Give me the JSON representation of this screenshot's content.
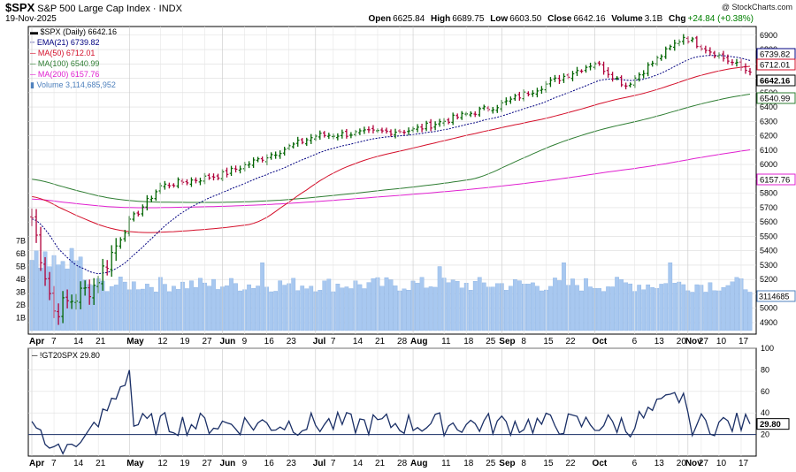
{
  "header": {
    "symbol": "$SPX",
    "description": "S&P 500 Large Cap Index · INDX",
    "date": "19-Nov-2025",
    "watermark": "@ StockCharts.com",
    "open_label": "Open",
    "open": "6625.84",
    "high_label": "High",
    "high": "6689.75",
    "low_label": "Low",
    "low": "6603.50",
    "close_label": "Close",
    "close": "6642.16",
    "volume_label": "Volume",
    "volume": "3.1B",
    "chg_label": "Chg",
    "chg": "+24.84 (+0.38%)",
    "chg_color": "#008000"
  },
  "legend": {
    "price": "$SPX (Daily) 6642.16",
    "ema21": "EMA(21) 6739.82",
    "ma50": "MA(50) 6712.01",
    "ma100": "MA(100) 6540.99",
    "ma200": "MA(200) 6157.76",
    "volume": "Volume 3,114,685,952"
  },
  "colors": {
    "up": "#006400",
    "down": "#b0003a",
    "ema": "#000080",
    "ma50": "#d40f2a",
    "ma100": "#2e7d32",
    "ma200": "#e020d0",
    "volume": "#a8c8f0",
    "indicator": "#1a2f66"
  },
  "price_axis_badges": {
    "ema21": "6739.82",
    "ma50": "6712.01",
    "last": "6642.16",
    "ma100": "6540.99",
    "ma200": "6157.76",
    "volume": "3114685"
  },
  "indicator": {
    "label": "!GT20SPX 29.80",
    "last": "29.80"
  },
  "chart_data": [
    {
      "type": "ohlc",
      "title": "$SPX S&P 500 Large Cap Index",
      "price_ticks": [
        4900,
        5000,
        5100,
        5200,
        5300,
        5400,
        5500,
        5600,
        5700,
        5800,
        5900,
        6000,
        6100,
        6200,
        6300,
        6400,
        6500,
        6600,
        6700,
        6800,
        6900
      ],
      "volume_ticks": [
        "1B",
        "2B",
        "3B",
        "4B",
        "5B",
        "6B",
        "7B"
      ],
      "ylim": [
        4820,
        6960
      ],
      "x_tick_labels": [
        "Apr",
        "7",
        "14",
        "21",
        "May",
        "12",
        "19",
        "27",
        "Jun",
        "9",
        "16",
        "23",
        "Jul",
        "7",
        "14",
        "21",
        "28",
        "Aug",
        "11",
        "18",
        "25",
        "Sep",
        "8",
        "15",
        "22",
        "Oct",
        "6",
        "13",
        "20",
        "27",
        "Nov",
        "10",
        "17"
      ],
      "key_points": [
        {
          "date": "Apr 1",
          "close": 5630
        },
        {
          "date": "Apr 8",
          "close": 4980
        },
        {
          "date": "Apr 21",
          "close": 5160
        },
        {
          "date": "May 1",
          "close": 5600
        },
        {
          "date": "May 12",
          "close": 5850
        },
        {
          "date": "Jun 2",
          "close": 5930
        },
        {
          "date": "Jul 1",
          "close": 6200
        },
        {
          "date": "Aug 1",
          "close": 6240
        },
        {
          "date": "Sep 2",
          "close": 6420
        },
        {
          "date": "Oct 1",
          "close": 6710
        },
        {
          "date": "Oct 10",
          "close": 6550
        },
        {
          "date": "Oct 29",
          "close": 6890
        },
        {
          "date": "Nov 19",
          "close": 6642.16
        }
      ],
      "series": [
        {
          "name": "EMA(21)",
          "last": 6739.82
        },
        {
          "name": "MA(50)",
          "last": 6712.01
        },
        {
          "name": "MA(100)",
          "last": 6540.99
        },
        {
          "name": "MA(200)",
          "last": 6157.76
        }
      ],
      "volume_last": 3114685952
    },
    {
      "type": "line",
      "title": "!GT20SPX",
      "ylim": [
        0,
        100
      ],
      "y_ticks": [
        20,
        40,
        60,
        80,
        100
      ],
      "reference_line": 20,
      "key_points": [
        {
          "date": "Apr 1",
          "value": 35
        },
        {
          "date": "Apr 8",
          "value": 5
        },
        {
          "date": "Apr 21",
          "value": 22
        },
        {
          "date": "May 1",
          "value": 80
        },
        {
          "date": "May 19",
          "value": 87
        },
        {
          "date": "Jun 16",
          "value": 55
        },
        {
          "date": "Jul 7",
          "value": 82
        },
        {
          "date": "Aug 4",
          "value": 55
        },
        {
          "date": "Sep 8",
          "value": 75
        },
        {
          "date": "Oct 10",
          "value": 26
        },
        {
          "date": "Oct 29",
          "value": 58
        },
        {
          "date": "Nov 12",
          "value": 60
        },
        {
          "date": "Nov 19",
          "value": 29.8
        }
      ]
    }
  ]
}
